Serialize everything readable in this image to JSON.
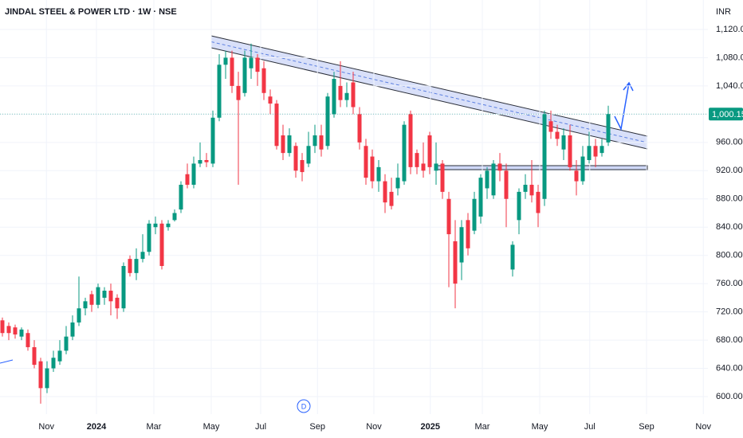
{
  "chart_data": {
    "type": "candlestick",
    "title": "JINDAL STEEL & POWER LTD · 1W · NSE",
    "currency": "INR",
    "event_marker": "D",
    "up_color": "#089981",
    "down_color": "#f23645",
    "open": [
      708,
      700,
      698,
      685,
      690,
      670,
      650,
      612,
      640,
      650,
      665,
      685,
      705,
      725,
      745,
      730,
      740,
      750,
      740,
      725,
      795,
      775,
      795,
      805,
      840,
      845,
      840,
      850,
      865,
      915,
      900,
      930,
      935,
      930,
      995,
      1070,
      1080,
      1040,
      1030,
      1065,
      1080,
      1065,
      1025,
      1015,
      970,
      945,
      955,
      935,
      930,
      955,
      970,
      955,
      1000,
      1040,
      1020,
      1045,
      1000,
      955,
      940,
      905,
      905,
      890,
      895,
      905,
      1000,
      945,
      930,
      970,
      920,
      930,
      880,
      820,
      790,
      850,
      835,
      855,
      895,
      885,
      930,
      920,
      780,
      850,
      890,
      900,
      890,
      880,
      990,
      975,
      950,
      970,
      920,
      905,
      935,
      955,
      945,
      960
    ],
    "high": [
      712,
      705,
      702,
      698,
      695,
      680,
      655,
      650,
      665,
      680,
      700,
      715,
      770,
      740,
      750,
      760,
      755,
      760,
      745,
      790,
      800,
      810,
      830,
      850,
      855,
      850,
      850,
      865,
      905,
      930,
      940,
      960,
      945,
      1005,
      1085,
      1090,
      1090,
      1060,
      1090,
      1100,
      1085,
      1075,
      1035,
      1020,
      985,
      980,
      960,
      945,
      975,
      985,
      985,
      1030,
      1060,
      1075,
      1045,
      1060,
      1010,
      965,
      950,
      935,
      915,
      910,
      930,
      990,
      1005,
      950,
      960,
      975,
      960,
      935,
      890,
      850,
      850,
      860,
      890,
      915,
      925,
      935,
      945,
      930,
      820,
      895,
      915,
      935,
      900,
      1005,
      1005,
      985,
      980,
      985,
      935,
      955,
      975,
      965,
      965,
      1012
    ],
    "low": [
      685,
      680,
      682,
      680,
      665,
      640,
      590,
      605,
      635,
      645,
      660,
      680,
      700,
      715,
      720,
      725,
      730,
      715,
      710,
      720,
      770,
      765,
      790,
      800,
      830,
      780,
      835,
      848,
      860,
      895,
      895,
      925,
      925,
      925,
      990,
      1050,
      1030,
      900,
      1025,
      1050,
      1040,
      1020,
      1000,
      950,
      935,
      940,
      910,
      905,
      925,
      945,
      940,
      950,
      995,
      1010,
      1010,
      1000,
      950,
      900,
      895,
      890,
      860,
      865,
      885,
      900,
      915,
      915,
      910,
      915,
      900,
      880,
      755,
      725,
      765,
      800,
      830,
      845,
      880,
      880,
      905,
      840,
      770,
      830,
      880,
      875,
      840,
      870,
      965,
      955,
      935,
      920,
      885,
      900,
      930,
      925,
      940,
      955
    ],
    "close": [
      690,
      690,
      688,
      695,
      670,
      645,
      612,
      640,
      655,
      665,
      685,
      705,
      725,
      735,
      730,
      755,
      750,
      735,
      725,
      785,
      775,
      795,
      805,
      845,
      845,
      785,
      845,
      860,
      900,
      900,
      930,
      935,
      932,
      995,
      1070,
      1080,
      1040,
      1020,
      1080,
      1080,
      1060,
      1030,
      1015,
      955,
      945,
      970,
      920,
      918,
      955,
      970,
      950,
      1025,
      1050,
      1020,
      1030,
      1010,
      960,
      910,
      905,
      925,
      875,
      870,
      910,
      985,
      925,
      925,
      920,
      925,
      930,
      890,
      830,
      760,
      840,
      810,
      880,
      910,
      920,
      930,
      920,
      880,
      815,
      890,
      900,
      885,
      860,
      1000,
      975,
      965,
      970,
      925,
      905,
      940,
      955,
      940,
      955,
      1000.15
    ],
    "last_price": {
      "value": 1000.15,
      "label": "1,000.15"
    },
    "xlim": [
      -0.375,
      110.625
    ],
    "xticks": [
      {
        "value": 6.9,
        "label": "Nov"
      },
      {
        "value": 14.75,
        "label": "2024"
      },
      {
        "value": 23.75,
        "label": "Mar"
      },
      {
        "value": 32.75,
        "label": "May"
      },
      {
        "value": 40.5,
        "label": "Jul"
      },
      {
        "value": 49.4,
        "label": "Sep"
      },
      {
        "value": 58.25,
        "label": "Nov"
      },
      {
        "value": 67.1,
        "label": "2025"
      },
      {
        "value": 75.25,
        "label": "Mar"
      },
      {
        "value": 84.25,
        "label": "May"
      },
      {
        "value": 92.1,
        "label": "Jul"
      },
      {
        "value": 101,
        "label": "Sep"
      },
      {
        "value": 109.9,
        "label": "Nov"
      }
    ],
    "ylim": [
      575.2,
      1161.7
    ],
    "yticks": [
      {
        "value": 600,
        "label": "600.00"
      },
      {
        "value": 640,
        "label": "640.00"
      },
      {
        "value": 680,
        "label": "680.00"
      },
      {
        "value": 720,
        "label": "720.00"
      },
      {
        "value": 760,
        "label": "760.00"
      },
      {
        "value": 800,
        "label": "800.00"
      },
      {
        "value": 840,
        "label": "840.00"
      },
      {
        "value": 880,
        "label": "880.00"
      },
      {
        "value": 920,
        "label": "920.00"
      },
      {
        "value": 960,
        "label": "960.00"
      },
      {
        "value": 1000,
        "label": "1,000.00"
      },
      {
        "value": 1040,
        "label": "1,040.00"
      },
      {
        "value": 1080,
        "label": "1,080.00"
      },
      {
        "value": 1120,
        "label": "1,120.00"
      }
    ]
  }
}
